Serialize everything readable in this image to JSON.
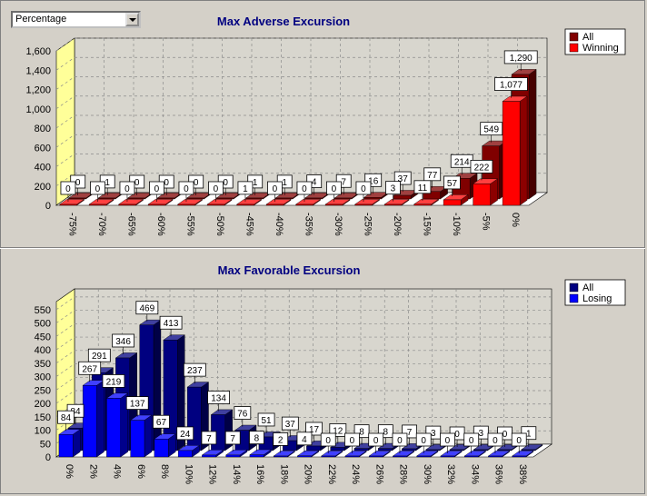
{
  "selector": {
    "value": "Percentage"
  },
  "colors": {
    "back_wall": "#d8d6ce",
    "side_wall": "#ffff99",
    "floor": "#ffffff",
    "grid": "#8c8c8c"
  },
  "chart_data": [
    {
      "type": "bar",
      "title": "Max Adverse Excursion",
      "categories": [
        "-75%",
        "-70%",
        "-65%",
        "-60%",
        "-55%",
        "-50%",
        "-45%",
        "-40%",
        "-35%",
        "-30%",
        "-25%",
        "-20%",
        "-15%",
        "-10%",
        "-5%",
        "0%"
      ],
      "ylim": [
        0,
        1600
      ],
      "yticks": [
        0,
        200,
        400,
        600,
        800,
        1000,
        1200,
        1400,
        1600
      ],
      "ytick_labels": [
        "0",
        "200",
        "400",
        "600",
        "800",
        "1,000",
        "1,200",
        "1,400",
        "1,600"
      ],
      "grid": true,
      "legend_position": "top-right",
      "series": [
        {
          "name": "All",
          "color": "#800000",
          "values": [
            0,
            1,
            0,
            0,
            0,
            0,
            1,
            1,
            4,
            7,
            16,
            37,
            77,
            214,
            549,
            1290
          ],
          "labels": [
            "0",
            "1",
            "0",
            "0",
            "0",
            "0",
            "1",
            "1",
            "4",
            "7",
            "16",
            "37",
            "77",
            "214",
            "549",
            "1,290"
          ]
        },
        {
          "name": "Winning",
          "color": "#ff0000",
          "values": [
            0,
            0,
            0,
            0,
            0,
            0,
            1,
            0,
            0,
            0,
            0,
            3,
            11,
            57,
            222,
            1077
          ],
          "labels": [
            "0",
            "0",
            "0",
            "0",
            "0",
            "0",
            "1",
            "0",
            "0",
            "0",
            "0",
            "3",
            "11",
            "57",
            "222",
            "1,077"
          ]
        }
      ]
    },
    {
      "type": "bar",
      "title": "Max Favorable Excursion",
      "categories": [
        "0%",
        "2%",
        "4%",
        "6%",
        "8%",
        "10%",
        "12%",
        "14%",
        "16%",
        "18%",
        "20%",
        "22%",
        "24%",
        "26%",
        "28%",
        "30%",
        "32%",
        "34%",
        "36%",
        "38%"
      ],
      "ylim": [
        0,
        580
      ],
      "yticks": [
        0,
        50,
        100,
        150,
        200,
        250,
        300,
        350,
        400,
        450,
        500,
        550
      ],
      "ytick_labels": [
        "0",
        "50",
        "100",
        "150",
        "200",
        "250",
        "300",
        "350",
        "400",
        "450",
        "500",
        "550"
      ],
      "grid": true,
      "legend_position": "top-right",
      "series": [
        {
          "name": "All",
          "color": "#000080",
          "values": [
            84,
            291,
            346,
            469,
            413,
            237,
            134,
            76,
            51,
            37,
            17,
            12,
            8,
            8,
            7,
            3,
            0,
            3,
            0,
            1
          ],
          "labels": [
            "84",
            "291",
            "346",
            "469",
            "413",
            "237",
            "134",
            "76",
            "51",
            "37",
            "17",
            "12",
            "8",
            "8",
            "7",
            "3",
            "0",
            "3",
            "0",
            "1"
          ]
        },
        {
          "name": "Losing",
          "color": "#0000ff",
          "values": [
            84,
            267,
            219,
            137,
            67,
            24,
            7,
            7,
            8,
            2,
            4,
            0,
            0,
            0,
            0,
            0,
            0,
            0,
            0,
            0
          ],
          "labels": [
            "84",
            "267",
            "219",
            "137",
            "67",
            "24",
            "7",
            "7",
            "8",
            "2",
            "4",
            "0",
            "0",
            "0",
            "0",
            "0",
            "0",
            "0",
            "0",
            "0"
          ]
        }
      ]
    }
  ]
}
